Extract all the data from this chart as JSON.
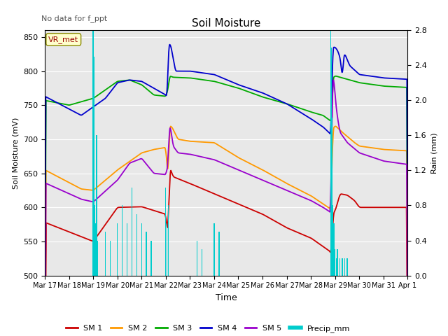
{
  "title": "Soil Moisture",
  "xlabel": "Time",
  "ylabel_left": "Soil Moisture (mV)",
  "ylabel_right": "Rain (mm)",
  "annotation": "No data for f_ppt",
  "vr_met_label": "VR_met",
  "ylim_left": [
    500,
    860
  ],
  "ylim_right": [
    0.0,
    2.8
  ],
  "yticks_left": [
    500,
    550,
    600,
    650,
    700,
    750,
    800,
    850
  ],
  "yticks_right": [
    0.0,
    0.4,
    0.8,
    1.2,
    1.6,
    2.0,
    2.4,
    2.8
  ],
  "xtick_labels": [
    "Mar 17",
    "Mar 18",
    "Mar 19",
    "Mar 20",
    "Mar 21",
    "Mar 22",
    "Mar 23",
    "Mar 24",
    "Mar 25",
    "Mar 26",
    "Mar 27",
    "Mar 28",
    "Mar 29",
    "Mar 30",
    "Mar 31",
    "Apr 1"
  ],
  "colors": {
    "SM1": "#cc0000",
    "SM2": "#ff9900",
    "SM3": "#00aa00",
    "SM4": "#0000cc",
    "SM5": "#9900cc",
    "Precip": "#00cccc",
    "grid": "#ffffff",
    "plot_bg": "#e8e8e8"
  },
  "legend_items": [
    "SM 1",
    "SM 2",
    "SM 3",
    "SM 4",
    "SM 5",
    "Precip_mm"
  ]
}
